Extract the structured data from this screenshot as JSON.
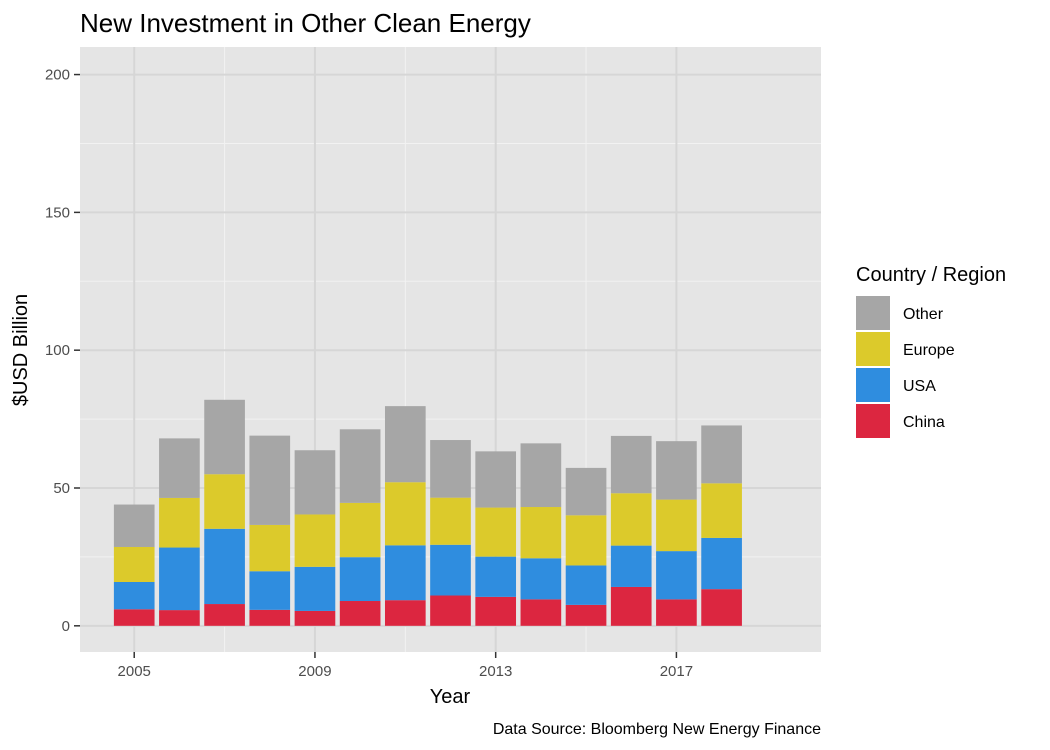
{
  "chart_data": {
    "type": "bar",
    "stacked": true,
    "title": "New Investment in Other Clean Energy",
    "xlabel": "Year",
    "ylabel": "$USD Billion",
    "caption": "Data Source: Bloomberg New Energy Finance",
    "legend_title": "Country / Region",
    "legend_position": "right",
    "grid": true,
    "xlim": [
      2003.8,
      2020.2
    ],
    "ylim": [
      -9.5,
      210
    ],
    "x_ticks": [
      2005,
      2009,
      2013,
      2017
    ],
    "y_ticks": [
      0,
      50,
      100,
      150,
      200
    ],
    "x": [
      2005,
      2006,
      2007,
      2008,
      2009,
      2010,
      2011,
      2012,
      2013,
      2014,
      2015,
      2016,
      2017,
      2018
    ],
    "series": [
      {
        "name": "China",
        "color": "#dc2640",
        "values": [
          6.0,
          5.7,
          7.9,
          5.8,
          5.4,
          9.0,
          9.3,
          11.0,
          10.5,
          9.6,
          7.6,
          14.1,
          9.6,
          13.3
        ]
      },
      {
        "name": "USA",
        "color": "#2f8ddf",
        "values": [
          9.9,
          22.7,
          27.3,
          14.0,
          16.0,
          15.9,
          19.9,
          18.4,
          14.6,
          14.9,
          14.3,
          15.0,
          17.5,
          18.6
        ]
      },
      {
        "name": "Europe",
        "color": "#dcca2b",
        "values": [
          12.7,
          18.0,
          19.8,
          16.8,
          19.0,
          19.7,
          22.9,
          17.1,
          17.8,
          18.6,
          18.2,
          19.0,
          18.7,
          19.8
        ]
      },
      {
        "name": "Other",
        "color": "#a6a6a6",
        "values": [
          15.4,
          21.6,
          27.0,
          32.4,
          23.3,
          26.7,
          27.6,
          20.9,
          20.4,
          23.1,
          17.2,
          20.8,
          21.2,
          21.0
        ]
      }
    ],
    "legend_order": [
      "Other",
      "Europe",
      "USA",
      "China"
    ]
  }
}
